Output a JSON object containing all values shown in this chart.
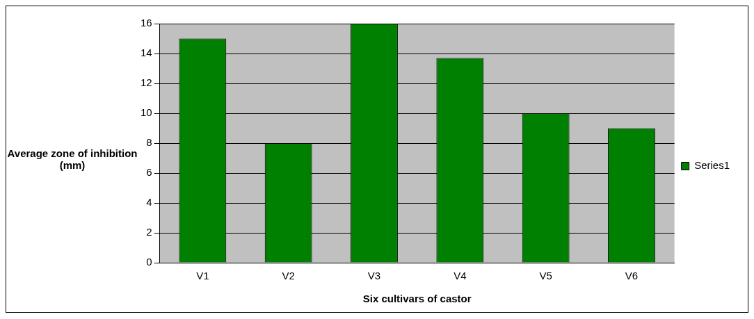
{
  "chart_data": {
    "type": "bar",
    "xlabel": "Six cultivars of castor",
    "ylabel": "Average zone of inhibition (mm)",
    "categories": [
      "V1",
      "V2",
      "V3",
      "V4",
      "V5",
      "V6"
    ],
    "series": [
      {
        "name": "Series1",
        "color": "#008000",
        "values": [
          15,
          8,
          16,
          13.7,
          10,
          9
        ]
      }
    ],
    "ylim": [
      0,
      16
    ],
    "yticks": [
      0,
      2,
      4,
      6,
      8,
      10,
      12,
      14,
      16
    ],
    "grid": "y",
    "legend": "right"
  }
}
